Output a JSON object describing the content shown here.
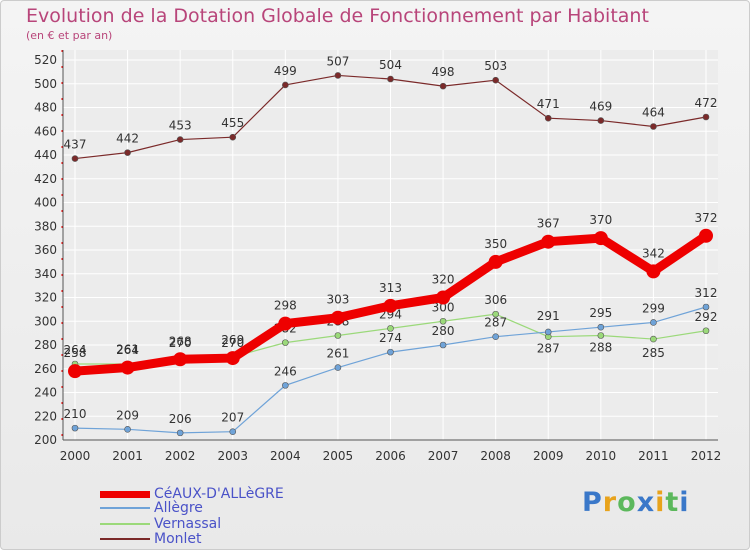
{
  "header": {
    "title": "Evolution de la Dotation Globale de Fonctionnement par Habitant",
    "subtitle": "(en € et par an)"
  },
  "chart_data": {
    "type": "line",
    "title": "Evolution de la Dotation Globale de Fonctionnement par Habitant",
    "subtitle": "(en € et par an)",
    "xlabel": "",
    "ylabel": "",
    "ylim": [
      200,
      520
    ],
    "yticks": [
      200,
      220,
      240,
      260,
      280,
      300,
      320,
      340,
      360,
      380,
      400,
      420,
      440,
      460,
      480,
      500,
      520
    ],
    "categories": [
      "2000",
      "2001",
      "2002",
      "2003",
      "2004",
      "2005",
      "2006",
      "2007",
      "2008",
      "2009",
      "2010",
      "2011",
      "2012"
    ],
    "grid": true,
    "legend_position": "bottom-left",
    "series": [
      {
        "name": "Monlet",
        "color": "#7b2a2a",
        "values": [
          437,
          442,
          453,
          455,
          499,
          507,
          504,
          498,
          503,
          471,
          469,
          464,
          472
        ]
      },
      {
        "name": "Vernassal",
        "color": "#9bd97a",
        "values": [
          264,
          264,
          270,
          270,
          282,
          288,
          294,
          300,
          306,
          287,
          288,
          285,
          292
        ]
      },
      {
        "name": "Allègre",
        "color": "#6fa3d8",
        "values": [
          210,
          209,
          206,
          207,
          246,
          261,
          274,
          280,
          287,
          291,
          295,
          299,
          312
        ]
      },
      {
        "name": "CéAUX-D'ALLèGRE",
        "color": "#ee0000",
        "values": [
          258,
          261,
          268,
          269,
          298,
          303,
          313,
          320,
          350,
          367,
          370,
          342,
          372
        ]
      }
    ]
  },
  "legend": {
    "items": [
      {
        "label": "CéAUX-D'ALLèGRE",
        "color": "#ee0000",
        "text_color": "#4a52c8"
      },
      {
        "label": "Allègre",
        "color": "#6fa3d8",
        "text_color": "#4a52c8"
      },
      {
        "label": "Vernassal",
        "color": "#9bd97a",
        "text_color": "#4a52c8"
      },
      {
        "label": "Monlet",
        "color": "#7b2a2a",
        "text_color": "#4a52c8"
      }
    ]
  },
  "logo": {
    "letters": [
      "P",
      "r",
      "o",
      "x",
      "i",
      "t",
      "i"
    ],
    "colors": [
      "#3a78c9",
      "#e8a31c",
      "#5cb85c",
      "#3a78c9",
      "#e8a31c",
      "#5cb85c",
      "#3a78c9"
    ]
  }
}
